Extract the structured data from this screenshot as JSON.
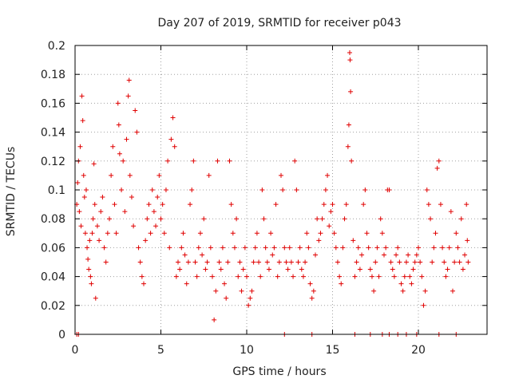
{
  "chart_data": {
    "type": "scatter",
    "title": "Day 207 of 2019, SRMTID for receiver p043",
    "xlabel": "GPS time / hours",
    "ylabel": "SRMTID / TECUs",
    "xlim": [
      0,
      24
    ],
    "ylim": [
      0,
      0.2
    ],
    "x_ticks": [
      0,
      5,
      10,
      15,
      20
    ],
    "x_tick_labels": [
      "0",
      "5",
      "10",
      "15",
      "20"
    ],
    "y_ticks": [
      0,
      0.02,
      0.04,
      0.06,
      0.08,
      0.1,
      0.12,
      0.14,
      0.16,
      0.18,
      0.2
    ],
    "y_tick_labels": [
      "0",
      "0.02",
      "0.04",
      "0.06",
      "0.08",
      "0.1",
      "0.12",
      "0.14",
      "0.16",
      "0.18",
      "0.2"
    ],
    "grid": true,
    "marker": "+",
    "series_color": "#e00000",
    "series": [
      {
        "name": "SRMTID",
        "points": [
          [
            0.1,
            0.09
          ],
          [
            0.15,
            0.105
          ],
          [
            0.2,
            0.12
          ],
          [
            0.25,
            0.085
          ],
          [
            0.3,
            0.13
          ],
          [
            0.35,
            0.075
          ],
          [
            0.4,
            0.165
          ],
          [
            0.45,
            0.148
          ],
          [
            0.5,
            0.11
          ],
          [
            0.55,
            0.095
          ],
          [
            0.6,
            0.07
          ],
          [
            0.65,
            0.1
          ],
          [
            0.7,
            0.06
          ],
          [
            0.75,
            0.052
          ],
          [
            0.8,
            0.045
          ],
          [
            0.85,
            0.065
          ],
          [
            0.9,
            0.04
          ],
          [
            0.95,
            0.035
          ],
          [
            1.0,
            0.07
          ],
          [
            1.05,
            0.08
          ],
          [
            1.1,
            0.118
          ],
          [
            1.15,
            0.09
          ],
          [
            1.2,
            0.025
          ],
          [
            1.3,
            0.075
          ],
          [
            1.4,
            0.065
          ],
          [
            1.5,
            0.085
          ],
          [
            1.6,
            0.095
          ],
          [
            1.7,
            0.06
          ],
          [
            1.8,
            0.05
          ],
          [
            1.9,
            0.07
          ],
          [
            2.0,
            0.08
          ],
          [
            2.1,
            0.11
          ],
          [
            2.2,
            0.13
          ],
          [
            2.3,
            0.09
          ],
          [
            2.4,
            0.07
          ],
          [
            2.5,
            0.16
          ],
          [
            2.55,
            0.145
          ],
          [
            2.6,
            0.125
          ],
          [
            2.7,
            0.1
          ],
          [
            2.8,
            0.12
          ],
          [
            2.9,
            0.085
          ],
          [
            3.0,
            0.135
          ],
          [
            3.1,
            0.165
          ],
          [
            3.15,
            0.176
          ],
          [
            3.2,
            0.11
          ],
          [
            3.3,
            0.095
          ],
          [
            3.4,
            0.075
          ],
          [
            3.5,
            0.155
          ],
          [
            3.6,
            0.14
          ],
          [
            3.7,
            0.06
          ],
          [
            3.8,
            0.05
          ],
          [
            3.9,
            0.04
          ],
          [
            4.0,
            0.035
          ],
          [
            4.1,
            0.065
          ],
          [
            4.2,
            0.08
          ],
          [
            4.3,
            0.09
          ],
          [
            4.4,
            0.07
          ],
          [
            4.5,
            0.1
          ],
          [
            4.6,
            0.085
          ],
          [
            4.7,
            0.075
          ],
          [
            4.8,
            0.095
          ],
          [
            4.9,
            0.11
          ],
          [
            5.0,
            0.08
          ],
          [
            5.1,
            0.09
          ],
          [
            5.2,
            0.07
          ],
          [
            5.3,
            0.1
          ],
          [
            5.4,
            0.12
          ],
          [
            5.5,
            0.06
          ],
          [
            5.6,
            0.135
          ],
          [
            5.7,
            0.15
          ],
          [
            5.8,
            0.13
          ],
          [
            5.9,
            0.04
          ],
          [
            6.0,
            0.05
          ],
          [
            6.1,
            0.045
          ],
          [
            6.2,
            0.06
          ],
          [
            6.3,
            0.07
          ],
          [
            6.4,
            0.055
          ],
          [
            6.5,
            0.035
          ],
          [
            6.6,
            0.05
          ],
          [
            6.7,
            0.09
          ],
          [
            6.8,
            0.1
          ],
          [
            6.9,
            0.12
          ],
          [
            7.0,
            0.05
          ],
          [
            7.1,
            0.04
          ],
          [
            7.2,
            0.06
          ],
          [
            7.3,
            0.07
          ],
          [
            7.4,
            0.055
          ],
          [
            7.5,
            0.08
          ],
          [
            7.6,
            0.045
          ],
          [
            7.7,
            0.05
          ],
          [
            7.8,
            0.11
          ],
          [
            7.9,
            0.06
          ],
          [
            8.0,
            0.04
          ],
          [
            8.1,
            0.01
          ],
          [
            8.2,
            0.03
          ],
          [
            8.3,
            0.12
          ],
          [
            8.4,
            0.05
          ],
          [
            8.5,
            0.045
          ],
          [
            8.6,
            0.06
          ],
          [
            8.7,
            0.035
          ],
          [
            8.8,
            0.025
          ],
          [
            8.9,
            0.05
          ],
          [
            9.0,
            0.12
          ],
          [
            9.1,
            0.09
          ],
          [
            9.2,
            0.07
          ],
          [
            9.3,
            0.06
          ],
          [
            9.4,
            0.08
          ],
          [
            9.5,
            0.04
          ],
          [
            9.6,
            0.05
          ],
          [
            9.7,
            0.03
          ],
          [
            9.8,
            0.045
          ],
          [
            9.9,
            0.06
          ],
          [
            10.0,
            0.04
          ],
          [
            10.1,
            0.02
          ],
          [
            10.2,
            0.025
          ],
          [
            10.3,
            0.03
          ],
          [
            10.4,
            0.05
          ],
          [
            10.5,
            0.06
          ],
          [
            10.6,
            0.07
          ],
          [
            10.7,
            0.05
          ],
          [
            10.8,
            0.04
          ],
          [
            10.9,
            0.1
          ],
          [
            11.0,
            0.08
          ],
          [
            11.1,
            0.06
          ],
          [
            11.2,
            0.05
          ],
          [
            11.3,
            0.045
          ],
          [
            11.4,
            0.07
          ],
          [
            11.5,
            0.055
          ],
          [
            11.6,
            0.06
          ],
          [
            11.7,
            0.09
          ],
          [
            11.8,
            0.04
          ],
          [
            11.9,
            0.05
          ],
          [
            12.0,
            0.11
          ],
          [
            12.1,
            0.1
          ],
          [
            12.2,
            0.06
          ],
          [
            12.3,
            0.05
          ],
          [
            12.4,
            0.045
          ],
          [
            12.5,
            0.06
          ],
          [
            12.6,
            0.05
          ],
          [
            12.7,
            0.04
          ],
          [
            12.8,
            0.12
          ],
          [
            12.9,
            0.1
          ],
          [
            13.0,
            0.05
          ],
          [
            13.1,
            0.06
          ],
          [
            13.2,
            0.045
          ],
          [
            13.3,
            0.04
          ],
          [
            13.4,
            0.05
          ],
          [
            13.5,
            0.07
          ],
          [
            13.6,
            0.06
          ],
          [
            13.7,
            0.035
          ],
          [
            13.8,
            0.025
          ],
          [
            13.9,
            0.03
          ],
          [
            14.0,
            0.055
          ],
          [
            14.1,
            0.08
          ],
          [
            14.2,
            0.065
          ],
          [
            14.3,
            0.07
          ],
          [
            14.4,
            0.08
          ],
          [
            14.5,
            0.09
          ],
          [
            14.6,
            0.1
          ],
          [
            14.7,
            0.11
          ],
          [
            14.8,
            0.075
          ],
          [
            14.9,
            0.085
          ],
          [
            15.0,
            0.09
          ],
          [
            15.1,
            0.07
          ],
          [
            15.2,
            0.06
          ],
          [
            15.3,
            0.05
          ],
          [
            15.4,
            0.04
          ],
          [
            15.5,
            0.035
          ],
          [
            15.6,
            0.06
          ],
          [
            15.7,
            0.08
          ],
          [
            15.8,
            0.09
          ],
          [
            15.9,
            0.13
          ],
          [
            15.95,
            0.145
          ],
          [
            16.0,
            0.195
          ],
          [
            16.02,
            0.19
          ],
          [
            16.05,
            0.168
          ],
          [
            16.1,
            0.12
          ],
          [
            16.2,
            0.065
          ],
          [
            16.3,
            0.04
          ],
          [
            16.4,
            0.05
          ],
          [
            16.5,
            0.06
          ],
          [
            16.6,
            0.045
          ],
          [
            16.7,
            0.055
          ],
          [
            16.8,
            0.09
          ],
          [
            16.9,
            0.1
          ],
          [
            17.0,
            0.07
          ],
          [
            17.1,
            0.06
          ],
          [
            17.2,
            0.045
          ],
          [
            17.3,
            0.04
          ],
          [
            17.4,
            0.03
          ],
          [
            17.5,
            0.05
          ],
          [
            17.6,
            0.06
          ],
          [
            17.7,
            0.04
          ],
          [
            17.8,
            0.08
          ],
          [
            17.9,
            0.07
          ],
          [
            18.0,
            0.055
          ],
          [
            18.1,
            0.06
          ],
          [
            18.2,
            0.1
          ],
          [
            18.3,
            0.1
          ],
          [
            18.4,
            0.05
          ],
          [
            18.5,
            0.045
          ],
          [
            18.6,
            0.04
          ],
          [
            18.7,
            0.055
          ],
          [
            18.8,
            0.06
          ],
          [
            18.9,
            0.05
          ],
          [
            19.0,
            0.035
          ],
          [
            19.1,
            0.03
          ],
          [
            19.2,
            0.04
          ],
          [
            19.3,
            0.05
          ],
          [
            19.4,
            0.055
          ],
          [
            19.5,
            0.04
          ],
          [
            19.6,
            0.035
          ],
          [
            19.7,
            0.045
          ],
          [
            19.8,
            0.05
          ],
          [
            19.9,
            0.055
          ],
          [
            20.0,
            0.06
          ],
          [
            20.1,
            0.05
          ],
          [
            20.2,
            0.04
          ],
          [
            20.3,
            0.02
          ],
          [
            20.4,
            0.03
          ],
          [
            20.5,
            0.1
          ],
          [
            20.6,
            0.09
          ],
          [
            20.7,
            0.08
          ],
          [
            20.8,
            0.05
          ],
          [
            20.9,
            0.06
          ],
          [
            21.0,
            0.07
          ],
          [
            21.1,
            0.115
          ],
          [
            21.2,
            0.12
          ],
          [
            21.3,
            0.09
          ],
          [
            21.4,
            0.06
          ],
          [
            21.5,
            0.05
          ],
          [
            21.6,
            0.04
          ],
          [
            21.7,
            0.045
          ],
          [
            21.8,
            0.06
          ],
          [
            21.9,
            0.085
          ],
          [
            22.0,
            0.03
          ],
          [
            22.1,
            0.05
          ],
          [
            22.2,
            0.07
          ],
          [
            22.3,
            0.06
          ],
          [
            22.4,
            0.05
          ],
          [
            22.5,
            0.08
          ],
          [
            22.6,
            0.045
          ],
          [
            22.7,
            0.055
          ],
          [
            22.8,
            0.09
          ],
          [
            22.85,
            0.065
          ],
          [
            22.9,
            0.05
          ],
          [
            0.1,
            0
          ],
          [
            0.2,
            0
          ],
          [
            12.2,
            0
          ],
          [
            13.8,
            0
          ],
          [
            16.3,
            0
          ],
          [
            17.2,
            0
          ],
          [
            17.9,
            0
          ],
          [
            18.3,
            0
          ],
          [
            18.8,
            0
          ],
          [
            19.3,
            0
          ],
          [
            19.9,
            0
          ],
          [
            21.2,
            0
          ],
          [
            22.2,
            0
          ]
        ]
      }
    ]
  }
}
